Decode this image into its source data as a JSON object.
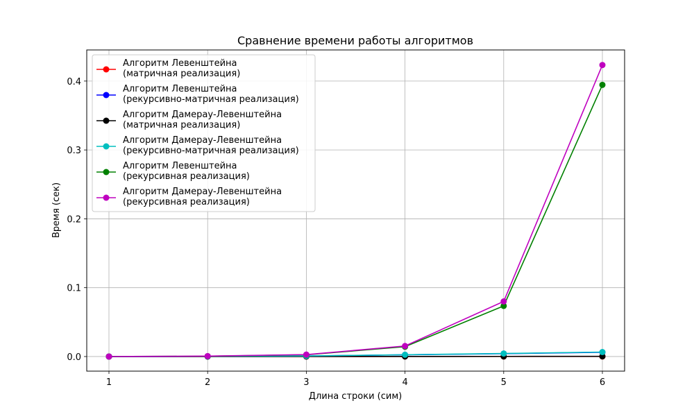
{
  "chart_data": {
    "type": "line",
    "title": "Сравнение времени работы алгоритмов",
    "xlabel": "Длина строки (сим)",
    "ylabel": "Время (сек)",
    "x": [
      1,
      2,
      3,
      4,
      5,
      6
    ],
    "xlim": [
      0.775,
      6.225
    ],
    "ylim": [
      -0.0212,
      0.4452
    ],
    "xticks": [
      "1",
      "2",
      "3",
      "4",
      "5",
      "6"
    ],
    "yticks": [
      0.0,
      0.1,
      0.2,
      0.3,
      0.4
    ],
    "ytick_labels": [
      "0.0",
      "0.1",
      "0.2",
      "0.3",
      "0.4"
    ],
    "grid": true,
    "legend_position": "upper-left",
    "series": [
      {
        "name": [
          "Алгоритм Левенштейна",
          "(матричная реализация)"
        ],
        "color": "#ff0000",
        "values": [
          0.0,
          0.0,
          0.0,
          0.0001,
          0.0001,
          0.0001
        ]
      },
      {
        "name": [
          "Алгоритм Левенштейна",
          "(рекурсивно-матричная реализация)"
        ],
        "color": "#0000ff",
        "values": [
          0.0,
          0.0002,
          0.0008,
          0.0025,
          0.0042,
          0.0062
        ]
      },
      {
        "name": [
          "Алгоритм Дамерау-Левенштейна",
          "(матричная реализация)"
        ],
        "color": "#000000",
        "values": [
          0.0,
          0.0,
          0.0001,
          0.0001,
          0.0002,
          0.0003
        ]
      },
      {
        "name": [
          "Алгоритм Дамерау-Левенштейна",
          "(рекурсивно-матричная реализация)"
        ],
        "color": "#00bfbf",
        "values": [
          0.0,
          0.0002,
          0.0008,
          0.0026,
          0.0044,
          0.0065
        ]
      },
      {
        "name": [
          "Алгоритм Левенштейна",
          "(рекурсивная реализация)"
        ],
        "color": "#008000",
        "values": [
          0.0,
          0.0005,
          0.0025,
          0.0143,
          0.0735,
          0.3945
        ]
      },
      {
        "name": [
          "Алгоритм Дамерау-Левенштейна",
          "(рекурсивная реализация)"
        ],
        "color": "#bf00bf",
        "values": [
          0.0,
          0.0006,
          0.0028,
          0.0153,
          0.08,
          0.4233
        ]
      }
    ]
  }
}
